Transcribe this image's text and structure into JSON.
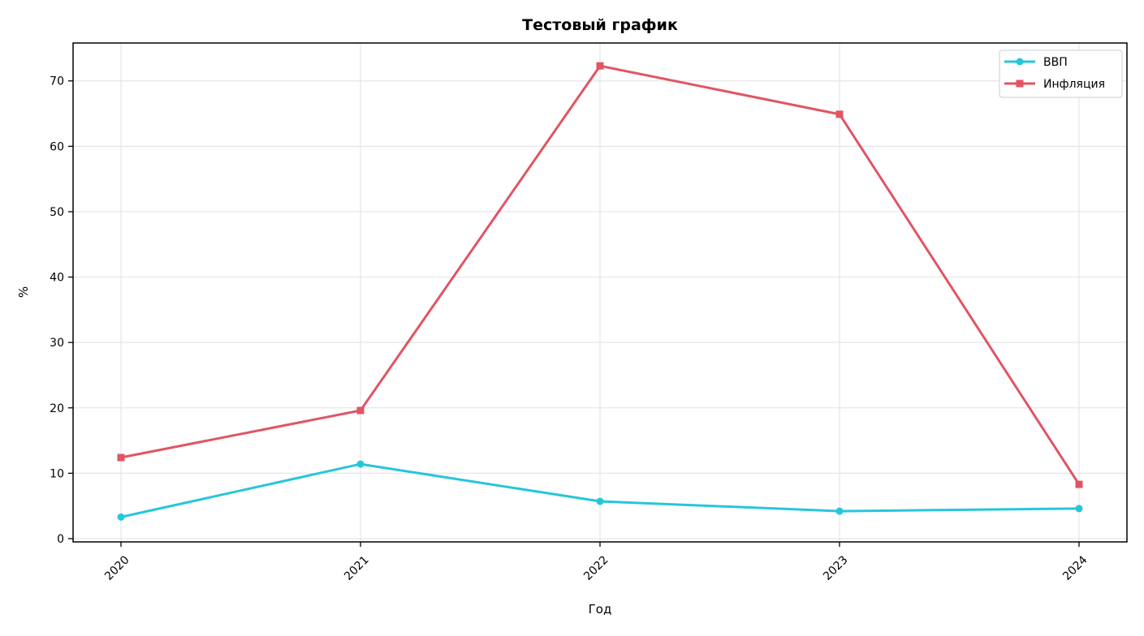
{
  "chart_data": {
    "type": "line",
    "title": "Тестовый график",
    "xlabel": "Год",
    "ylabel": "%",
    "categories": [
      "2020",
      "2021",
      "2022",
      "2023",
      "2024"
    ],
    "yticks": [
      0,
      10,
      20,
      30,
      40,
      50,
      60,
      70
    ],
    "ylim": [
      -0.5,
      75.8
    ],
    "grid": true,
    "legend_position": "top-right",
    "series": [
      {
        "name": "ВВП",
        "color": "#26c6da",
        "marker": "circle",
        "values": [
          3.3,
          11.4,
          5.7,
          4.2,
          4.6
        ]
      },
      {
        "name": "Инфляция",
        "color": "#e05563",
        "marker": "square",
        "values": [
          12.4,
          19.6,
          72.3,
          64.9,
          8.3
        ]
      }
    ]
  }
}
